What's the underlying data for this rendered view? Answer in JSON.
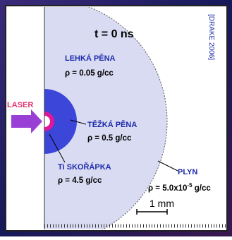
{
  "time_label": "t = 0 ns",
  "source": "[DRAKE 2006]",
  "laser": "LASER",
  "layers": [
    {
      "name": "LEHKÁ PĚNA",
      "density": "ρ = 0.05 g/cc"
    },
    {
      "name": "TĚŽKÁ PĚNA",
      "density": "ρ = 0.5 g/cc"
    },
    {
      "name": "Ti SKOŘÁPKA",
      "density": "ρ = 4.5 g/cc"
    }
  ],
  "gas": {
    "name": "PLYN",
    "density_base": "ρ = 5.0x10",
    "density_exponent": "-5",
    "density_unit": "g/cc"
  },
  "scale_bar": "1 mm"
}
